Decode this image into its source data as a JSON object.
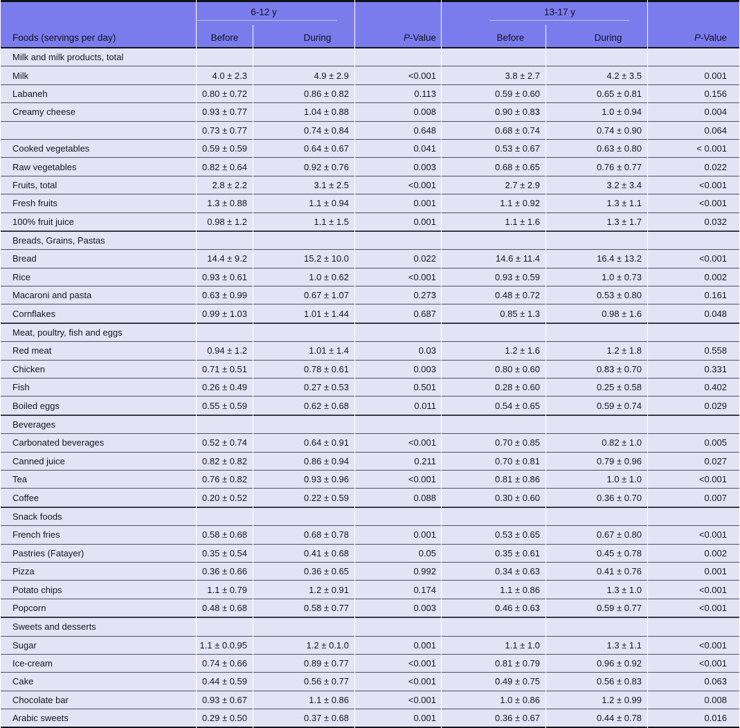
{
  "colors": {
    "header_background": "#7a7cee",
    "row_background": "#e3e3f5",
    "rule_dark": "#111118",
    "row_divider": "#4e4e5a"
  },
  "table": {
    "header": {
      "foods": "Foods (servings per day)",
      "group1": "6-12 y",
      "group2": "13-17 y",
      "before": "Before",
      "during": "During",
      "pvalue_p": "P",
      "pvalue_rest": "-Value"
    },
    "sections": [
      {
        "title": "Milk and milk products, total",
        "rows": [
          {
            "food": "Milk",
            "values": [
              "4.0 ± 2.3",
              "4.9 ± 2.9",
              "<0.001",
              "3.8 ± 2.7",
              "4.2 ± 3.5",
              "0.001"
            ]
          },
          {
            "food": "Labaneh",
            "values": [
              "0.80 ± 0.72",
              "0.86 ± 0.82",
              "0.113",
              "0.59 ± 0.60",
              "0.65 ± 0.81",
              "0.156"
            ]
          },
          {
            "food": "Creamy cheese",
            "values": [
              "0.93 ± 0.77",
              "1.04 ± 0.88",
              "0.008",
              "0.90 ± 0.83",
              "1.0 ± 0.94",
              "0.004"
            ]
          },
          {
            "food": "",
            "values": [
              "0.73 ± 0.77",
              "0.74 ± 0.84",
              "0.648",
              "0.68 ± 0.74",
              "0.74 ± 0.90",
              "0.064"
            ]
          },
          {
            "food": "Cooked vegetables",
            "values": [
              "0.59 ± 0.59",
              "0.64 ± 0.67",
              "0.041",
              "0.53 ± 0.67",
              "0.63 ± 0.80",
              "< 0.001"
            ]
          },
          {
            "food": "Raw vegetables",
            "values": [
              "0.82 ± 0.64",
              "0.92 ± 0.76",
              "0.003",
              "0.68 ± 0.65",
              "0.76 ± 0.77",
              "0.022"
            ]
          },
          {
            "food": "Fruits, total",
            "values": [
              "2.8 ± 2.2",
              "3.1 ± 2.5",
              "<0.001",
              "2.7 ± 2.9",
              "3.2 ± 3.4",
              "<0.001"
            ]
          },
          {
            "food": "Fresh fruits",
            "values": [
              "1.3 ± 0.88",
              "1.1 ± 0.94",
              "0.001",
              "1.1 ± 0.92",
              "1.3 ± 1.1",
              "<0.001"
            ]
          },
          {
            "food": "100% fruit juice",
            "values": [
              "0.98 ± 1.2",
              "1.1 ± 1.5",
              "0.001",
              "1.1 ± 1.6",
              "1.3 ± 1.7",
              "0.032"
            ]
          }
        ]
      },
      {
        "title": "Breads, Grains, Pastas",
        "rows": [
          {
            "food": "Bread",
            "values": [
              "14.4 ± 9.2",
              "15.2 ± 10.0",
              "0.022",
              "14.6 ± 11.4",
              "16.4 ± 13.2",
              "<0.001"
            ]
          },
          {
            "food": "Rice",
            "values": [
              "0.93 ± 0.61",
              "1.0 ± 0.62",
              "<0.001",
              "0.93 ± 0.59",
              "1.0 ± 0.73",
              "0.002"
            ]
          },
          {
            "food": "Macaroni and pasta",
            "values": [
              "0.63 ± 0.99",
              "0.67 ± 1.07",
              "0.273",
              "0.48 ± 0.72",
              "0.53 ± 0.80",
              "0.161"
            ]
          },
          {
            "food": "Cornflakes",
            "values": [
              "0.99 ± 1.03",
              "1.01 ± 1.44",
              "0.687",
              "0.85 ± 1.3",
              "0.98 ± 1.6",
              "0.048"
            ]
          }
        ]
      },
      {
        "title": "Meat, poultry, fish and eggs",
        "rows": [
          {
            "food": "Red meat",
            "values": [
              "0.94 ± 1.2",
              "1.01 ± 1.4",
              "0.03",
              "1.2 ± 1.6",
              "1.2 ± 1.8",
              "0.558"
            ]
          },
          {
            "food": "Chicken",
            "values": [
              "0.71 ± 0.51",
              "0.78 ± 0.61",
              "0.003",
              "0.80 ± 0.60",
              "0.83 ± 0.70",
              "0.331"
            ]
          },
          {
            "food": "Fish",
            "values": [
              "0.26 ± 0.49",
              "0.27 ± 0.53",
              "0.501",
              "0.28 ± 0.60",
              "0.25 ± 0.58",
              "0.402"
            ]
          },
          {
            "food": "Boiled eggs",
            "values": [
              "0.55 ± 0.59",
              "0.62 ± 0.68",
              "0.011",
              "0.54 ± 0.65",
              "0.59 ± 0.74",
              "0.029"
            ]
          }
        ]
      },
      {
        "title": "Beverages",
        "rows": [
          {
            "food": "Carbonated beverages",
            "values": [
              "0.52 ± 0.74",
              "0.64 ± 0.91",
              "<0.001",
              "0.70 ± 0.85",
              "0.82 ± 1.0",
              "0.005"
            ]
          },
          {
            "food": "Canned juice",
            "values": [
              "0.82 ± 0.82",
              "0.86 ± 0.94",
              "0.211",
              "0.70 ± 0.81",
              "0.79 ± 0.96",
              "0.027"
            ]
          },
          {
            "food": "Tea",
            "values": [
              "0.76 ± 0.82",
              "0.93 ± 0.96",
              "<0.001",
              "0.81 ± 0.86",
              "1.0 ± 1.0",
              "<0.001"
            ]
          },
          {
            "food": "Coffee",
            "values": [
              "0.20 ± 0.52",
              "0.22 ± 0.59",
              "0.088",
              "0.30 ± 0.60",
              "0.36 ± 0.70",
              "0.007"
            ]
          }
        ]
      },
      {
        "title": "Snack foods",
        "rows": [
          {
            "food": "French fries",
            "values": [
              "0.58 ± 0.68",
              "0.68 ± 0.78",
              "0.001",
              "0.53 ± 0.65",
              "0.67 ± 0.80",
              "<0.001"
            ]
          },
          {
            "food": "Pastries (Fatayer)",
            "values": [
              "0.35 ± 0.54",
              "0.41 ± 0.68",
              "0.05",
              "0.35 ± 0.61",
              "0.45 ± 0.78",
              "0.002"
            ]
          },
          {
            "food": "Pizza",
            "values": [
              "0.36 ± 0.66",
              "0.36 ± 0.65",
              "0.992",
              "0.34 ± 0.63",
              "0.41 ± 0.76",
              "0.001"
            ]
          },
          {
            "food": "Potato chips",
            "values": [
              "1.1 ± 0.79",
              "1.2 ± 0.91",
              "0.174",
              "1.1 ± 0.86",
              "1.3 ± 1.0",
              "<0.001"
            ]
          },
          {
            "food": "Popcorn",
            "values": [
              "0.48 ± 0.68",
              "0.58 ± 0.77",
              "0.003",
              "0.46 ± 0.63",
              "0.59 ± 0.77",
              "<0.001"
            ]
          }
        ]
      },
      {
        "title": "Sweets and desserts",
        "rows": [
          {
            "food": "Sugar",
            "values": [
              "1.1 ± 0.0.95",
              "1.2 ± 0.1.0",
              "0.001",
              "1.1 ± 1.0",
              "1.3 ± 1.1",
              "<0.001"
            ]
          },
          {
            "food": "Ice-cream",
            "values": [
              "0.74 ± 0.66",
              "0.89 ± 0.77",
              "<0.001",
              "0.81 ± 0.79",
              "0.96 ± 0.92",
              "<0.001"
            ]
          },
          {
            "food": "Cake",
            "values": [
              "0.44 ± 0.59",
              "0.56 ± 0.77",
              "<0.001",
              "0.49 ± 0.75",
              "0.56 ± 0.83",
              "0.063"
            ]
          },
          {
            "food": "Chocolate bar",
            "values": [
              "0.93 ± 0.67",
              "1.1 ± 0.86",
              "<0.001",
              "1.0 ± 0.86",
              "1.2 ± 0.99",
              "0.008"
            ]
          },
          {
            "food": "Arabic sweets",
            "values": [
              "0.29 ± 0.50",
              "0.37 ± 0.68",
              "0.001",
              "0.36 ± 0.67",
              "0.44 ± 0.78",
              "0.016"
            ]
          }
        ]
      }
    ]
  }
}
